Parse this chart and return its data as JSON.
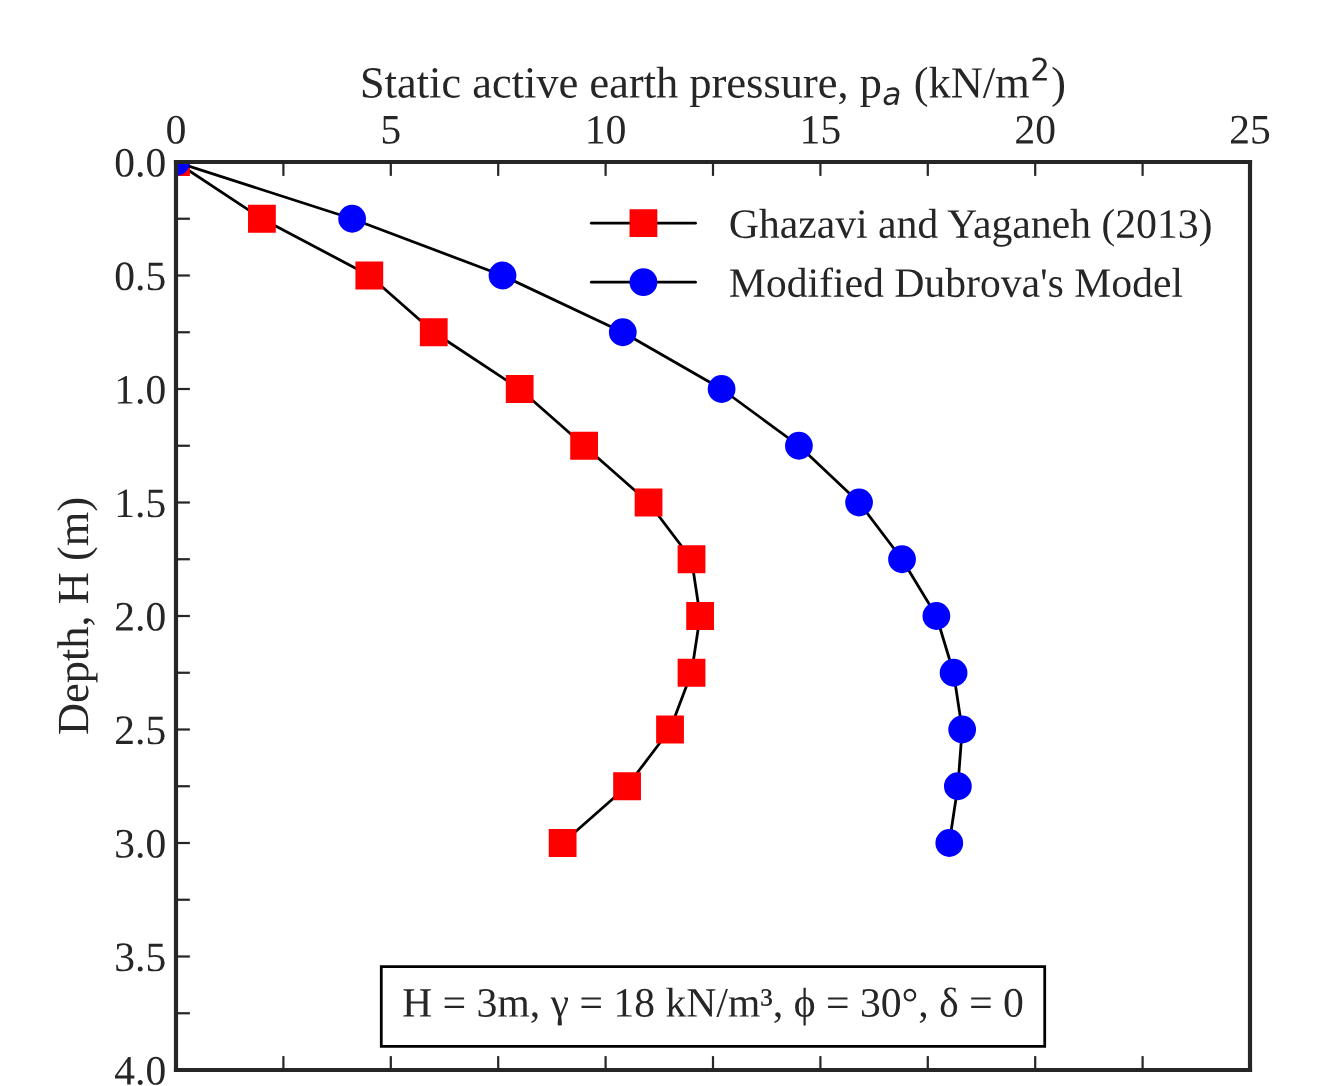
{
  "chart_data": {
    "type": "line",
    "xlabel": "Static active earth pressure, p$_{a}$ (kN/m$^{2}$)",
    "ylabel": "Depth, H (m)",
    "xlim": [
      0,
      25
    ],
    "xticks": [
      0,
      {
        "value": 2.5,
        "label": null
      },
      5,
      {
        "value": 7.5,
        "label": null
      },
      10,
      {
        "value": 12.5,
        "label": null
      },
      15,
      {
        "value": 17.5,
        "label": null
      },
      20,
      {
        "value": 22.5,
        "label": null
      },
      25
    ],
    "ylim": [
      4.0,
      0.0
    ],
    "yticks": [
      {
        "value": 0,
        "label": "0.0"
      },
      {
        "value": 0.25,
        "label": null
      },
      {
        "value": 0.5,
        "label": "0.5"
      },
      {
        "value": 0.75,
        "label": null
      },
      {
        "value": 1.0,
        "label": "1.0"
      },
      {
        "value": 1.25,
        "label": null
      },
      {
        "value": 1.5,
        "label": "1.5"
      },
      {
        "value": 1.75,
        "label": null
      },
      {
        "value": 2.0,
        "label": "2.0"
      },
      {
        "value": 2.25,
        "label": null
      },
      {
        "value": 2.5,
        "label": "2.5"
      },
      {
        "value": 2.75,
        "label": null
      },
      {
        "value": 3.0,
        "label": "3.0"
      },
      {
        "value": 3.25,
        "label": null
      },
      {
        "value": 3.5,
        "label": "3.5"
      },
      {
        "value": 3.75,
        "label": null
      },
      {
        "value": 4.0,
        "label": "4.0"
      }
    ],
    "grid": false,
    "legend": "top right",
    "series": [
      {
        "name": "Ghazavi and Yaganeh (2013)",
        "color": "#ff0000",
        "marker": "square",
        "x": [
          0,
          2.0,
          4.5,
          6.0,
          8.0,
          9.5,
          11.0,
          12.0,
          12.2,
          12.0,
          11.5,
          10.5,
          9.0
        ],
        "values": [
          0,
          0.25,
          0.5,
          0.75,
          1.0,
          1.25,
          1.5,
          1.75,
          2.0,
          2.25,
          2.5,
          2.75,
          3.0
        ]
      },
      {
        "name": "Modified Dubrova's Model",
        "color": "#0000ff",
        "marker": "circle",
        "x": [
          0,
          4.1,
          7.6,
          10.4,
          12.7,
          14.5,
          15.9,
          16.9,
          17.7,
          18.1,
          18.3,
          18.2,
          18.0
        ],
        "values": [
          0,
          0.25,
          0.5,
          0.75,
          1.0,
          1.25,
          1.5,
          1.75,
          2.0,
          2.25,
          2.5,
          2.75,
          3.0
        ]
      }
    ],
    "annotations": [
      "H = 3m, γ = 18 kN/m³, ϕ = 30°, δ = 0"
    ]
  }
}
